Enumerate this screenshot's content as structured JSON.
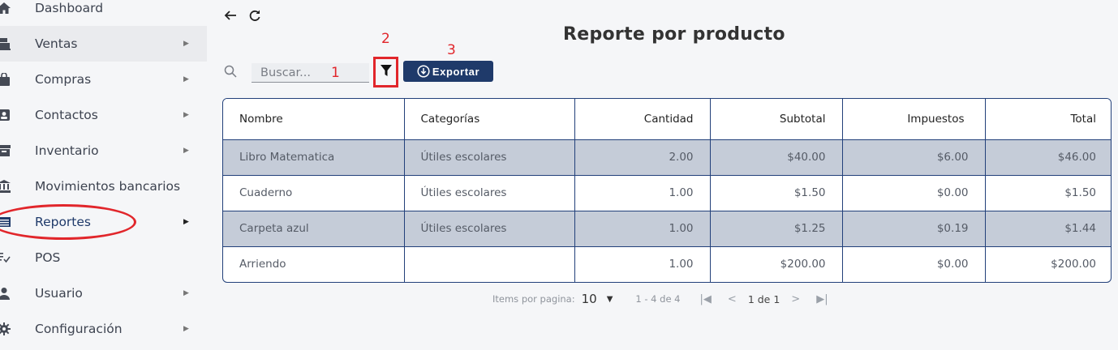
{
  "sidebar": {
    "items": [
      {
        "label": "Dashboard",
        "icon": "home-icon",
        "chevron": false
      },
      {
        "label": "Ventas",
        "icon": "cash-register-icon",
        "chevron": true
      },
      {
        "label": "Compras",
        "icon": "shopping-bag-icon",
        "chevron": true
      },
      {
        "label": "Contactos",
        "icon": "contact-card-icon",
        "chevron": true
      },
      {
        "label": "Inventario",
        "icon": "archive-box-icon",
        "chevron": true
      },
      {
        "label": "Movimientos bancarios",
        "icon": "bank-icon",
        "chevron": false
      },
      {
        "label": "Reportes",
        "icon": "list-icon",
        "chevron": true
      },
      {
        "label": "POS",
        "icon": "pos-icon",
        "chevron": false
      },
      {
        "label": "Usuario",
        "icon": "user-icon",
        "chevron": true
      },
      {
        "label": "Configuración",
        "icon": "gear-icon",
        "chevron": true
      }
    ]
  },
  "header": {
    "title": "Reporte por producto"
  },
  "search": {
    "placeholder": "Buscar..."
  },
  "annotations": {
    "one": "1",
    "two": "2",
    "three": "3"
  },
  "toolbar": {
    "export_label": "Exportar"
  },
  "table": {
    "headers": [
      "Nombre",
      "Categorías",
      "Cantidad",
      "Subtotal",
      "Impuestos",
      "Total"
    ],
    "rows": [
      [
        "Libro Matematica",
        "Útiles escolares",
        "2.00",
        "$40.00",
        "$6.00",
        "$46.00"
      ],
      [
        "Cuaderno",
        "Útiles escolares",
        "1.00",
        "$1.50",
        "$0.00",
        "$1.50"
      ],
      [
        "Carpeta azul",
        "Útiles escolares",
        "1.00",
        "$1.25",
        "$0.19",
        "$1.44"
      ],
      [
        "Arriendo",
        "",
        "1.00",
        "$200.00",
        "$0.00",
        "$200.00"
      ]
    ]
  },
  "paginator": {
    "items_label": "Items por pagina:",
    "page_size": "10",
    "range": "1 - 4 de 4",
    "page": "1 de 1"
  },
  "colors": {
    "accent": "#1f3a6a",
    "annotation": "#e1262b",
    "row_shade": "#c5ccd8"
  }
}
